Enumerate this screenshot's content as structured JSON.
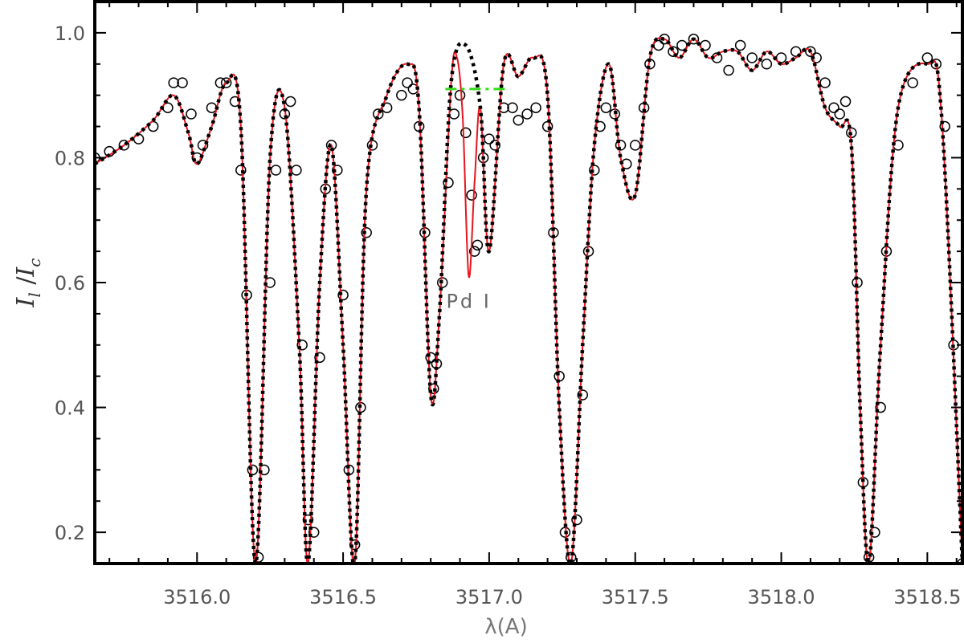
{
  "chart_data": {
    "type": "line",
    "title": "",
    "xlabel": "λ(A)",
    "ylabel": {
      "main": "I",
      "sub_l": "l",
      "sep": " /",
      "main2": "I",
      "sub_c": "c"
    },
    "xlim": [
      3515.65,
      3518.62
    ],
    "ylim": [
      0.15,
      1.05
    ],
    "xticks": [
      3516.0,
      3516.5,
      3517.0,
      3517.5,
      3518.0,
      3518.5
    ],
    "xtick_labels": [
      "3516.0",
      "3516.5",
      "3517.0",
      "3517.5",
      "3518.0",
      "3518.5"
    ],
    "yticks": [
      0.2,
      0.4,
      0.6,
      0.8,
      1.0
    ],
    "ytick_labels": [
      "0.2",
      "0.4",
      "0.6",
      "0.8",
      "1.0"
    ],
    "grid": false,
    "annotations": [
      {
        "text": "Pd I",
        "x": 3516.93,
        "y": 0.57
      }
    ],
    "colors": {
      "model": "#e8141c",
      "model_no_pd": "#000000",
      "continuum": "#33dd1a",
      "observed": "#000000"
    },
    "series": [
      {
        "style": "open-circles",
        "points": [
          [
            3515.65,
            0.8
          ],
          [
            3515.7,
            0.81
          ],
          [
            3515.75,
            0.82
          ],
          [
            3515.8,
            0.83
          ],
          [
            3515.85,
            0.85
          ],
          [
            3515.9,
            0.88
          ],
          [
            3515.92,
            0.92
          ],
          [
            3515.95,
            0.92
          ],
          [
            3515.98,
            0.87
          ],
          [
            3516.0,
            0.8
          ],
          [
            3516.02,
            0.82
          ],
          [
            3516.05,
            0.88
          ],
          [
            3516.08,
            0.92
          ],
          [
            3516.1,
            0.92
          ],
          [
            3516.13,
            0.89
          ],
          [
            3516.15,
            0.78
          ],
          [
            3516.17,
            0.58
          ],
          [
            3516.19,
            0.3
          ],
          [
            3516.21,
            0.16
          ],
          [
            3516.23,
            0.3
          ],
          [
            3516.25,
            0.6
          ],
          [
            3516.27,
            0.78
          ],
          [
            3516.3,
            0.87
          ],
          [
            3516.32,
            0.89
          ],
          [
            3516.34,
            0.78
          ],
          [
            3516.36,
            0.5
          ],
          [
            3516.38,
            0.22
          ],
          [
            3516.4,
            0.2
          ],
          [
            3516.42,
            0.48
          ],
          [
            3516.44,
            0.75
          ],
          [
            3516.46,
            0.82
          ],
          [
            3516.48,
            0.78
          ],
          [
            3516.5,
            0.58
          ],
          [
            3516.52,
            0.3
          ],
          [
            3516.54,
            0.18
          ],
          [
            3516.56,
            0.4
          ],
          [
            3516.58,
            0.68
          ],
          [
            3516.6,
            0.82
          ],
          [
            3516.62,
            0.87
          ],
          [
            3516.65,
            0.88
          ],
          [
            3516.7,
            0.9
          ],
          [
            3516.72,
            0.92
          ],
          [
            3516.74,
            0.91
          ],
          [
            3516.76,
            0.85
          ],
          [
            3516.78,
            0.68
          ],
          [
            3516.8,
            0.48
          ],
          [
            3516.81,
            0.43
          ],
          [
            3516.82,
            0.47
          ],
          [
            3516.84,
            0.6
          ],
          [
            3516.86,
            0.76
          ],
          [
            3516.88,
            0.87
          ],
          [
            3516.9,
            0.9
          ],
          [
            3516.92,
            0.84
          ],
          [
            3516.94,
            0.74
          ],
          [
            3516.95,
            0.65
          ],
          [
            3516.96,
            0.66
          ],
          [
            3516.98,
            0.8
          ],
          [
            3517.0,
            0.83
          ],
          [
            3517.02,
            0.82
          ],
          [
            3517.05,
            0.88
          ],
          [
            3517.08,
            0.88
          ],
          [
            3517.1,
            0.86
          ],
          [
            3517.13,
            0.87
          ],
          [
            3517.16,
            0.88
          ],
          [
            3517.2,
            0.85
          ],
          [
            3517.22,
            0.68
          ],
          [
            3517.24,
            0.45
          ],
          [
            3517.26,
            0.2
          ],
          [
            3517.28,
            0.16
          ],
          [
            3517.3,
            0.22
          ],
          [
            3517.32,
            0.42
          ],
          [
            3517.34,
            0.65
          ],
          [
            3517.36,
            0.78
          ],
          [
            3517.38,
            0.85
          ],
          [
            3517.4,
            0.88
          ],
          [
            3517.43,
            0.87
          ],
          [
            3517.45,
            0.82
          ],
          [
            3517.47,
            0.79
          ],
          [
            3517.5,
            0.82
          ],
          [
            3517.53,
            0.88
          ],
          [
            3517.55,
            0.95
          ],
          [
            3517.58,
            0.98
          ],
          [
            3517.6,
            0.99
          ],
          [
            3517.63,
            0.97
          ],
          [
            3517.66,
            0.98
          ],
          [
            3517.7,
            0.99
          ],
          [
            3517.74,
            0.98
          ],
          [
            3517.78,
            0.96
          ],
          [
            3517.82,
            0.94
          ],
          [
            3517.86,
            0.98
          ],
          [
            3517.9,
            0.96
          ],
          [
            3517.95,
            0.95
          ],
          [
            3518.0,
            0.96
          ],
          [
            3518.05,
            0.97
          ],
          [
            3518.1,
            0.97
          ],
          [
            3518.12,
            0.96
          ],
          [
            3518.15,
            0.92
          ],
          [
            3518.18,
            0.88
          ],
          [
            3518.2,
            0.87
          ],
          [
            3518.22,
            0.89
          ],
          [
            3518.24,
            0.84
          ],
          [
            3518.26,
            0.6
          ],
          [
            3518.28,
            0.28
          ],
          [
            3518.3,
            0.16
          ],
          [
            3518.32,
            0.2
          ],
          [
            3518.34,
            0.4
          ],
          [
            3518.36,
            0.65
          ],
          [
            3518.4,
            0.82
          ],
          [
            3518.45,
            0.92
          ],
          [
            3518.5,
            0.96
          ],
          [
            3518.53,
            0.95
          ],
          [
            3518.56,
            0.85
          ],
          [
            3518.59,
            0.5
          ],
          [
            3518.62,
            0.15
          ]
        ]
      },
      {
        "style": "dotted",
        "points": [
          [
            3515.65,
            0.79
          ],
          [
            3515.75,
            0.82
          ],
          [
            3515.85,
            0.86
          ],
          [
            3515.92,
            0.9
          ],
          [
            3515.97,
            0.84
          ],
          [
            3516.0,
            0.79
          ],
          [
            3516.05,
            0.85
          ],
          [
            3516.1,
            0.92
          ],
          [
            3516.15,
            0.85
          ],
          [
            3516.2,
            0.15
          ],
          [
            3516.25,
            0.8
          ],
          [
            3516.3,
            0.88
          ],
          [
            3516.35,
            0.5
          ],
          [
            3516.38,
            0.15
          ],
          [
            3516.42,
            0.6
          ],
          [
            3516.46,
            0.82
          ],
          [
            3516.5,
            0.5
          ],
          [
            3516.54,
            0.15
          ],
          [
            3516.58,
            0.75
          ],
          [
            3516.65,
            0.9
          ],
          [
            3516.72,
            0.95
          ],
          [
            3516.76,
            0.88
          ],
          [
            3516.8,
            0.42
          ],
          [
            3516.83,
            0.55
          ],
          [
            3516.87,
            0.92
          ],
          [
            3516.92,
            0.98
          ],
          [
            3516.97,
            0.88
          ],
          [
            3517.0,
            0.65
          ],
          [
            3517.05,
            0.95
          ],
          [
            3517.1,
            0.93
          ],
          [
            3517.15,
            0.96
          ],
          [
            3517.2,
            0.9
          ],
          [
            3517.24,
            0.4
          ],
          [
            3517.28,
            0.15
          ],
          [
            3517.32,
            0.5
          ],
          [
            3517.36,
            0.82
          ],
          [
            3517.41,
            0.95
          ],
          [
            3517.45,
            0.8
          ],
          [
            3517.5,
            0.74
          ],
          [
            3517.55,
            0.96
          ],
          [
            3517.6,
            0.99
          ],
          [
            3517.65,
            0.96
          ],
          [
            3517.7,
            0.99
          ],
          [
            3517.75,
            0.96
          ],
          [
            3517.8,
            0.97
          ],
          [
            3517.85,
            0.97
          ],
          [
            3517.9,
            0.94
          ],
          [
            3517.95,
            0.97
          ],
          [
            3518.0,
            0.95
          ],
          [
            3518.05,
            0.96
          ],
          [
            3518.1,
            0.97
          ],
          [
            3518.15,
            0.88
          ],
          [
            3518.2,
            0.85
          ],
          [
            3518.24,
            0.82
          ],
          [
            3518.27,
            0.4
          ],
          [
            3518.3,
            0.15
          ],
          [
            3518.34,
            0.5
          ],
          [
            3518.4,
            0.88
          ],
          [
            3518.5,
            0.95
          ],
          [
            3518.55,
            0.86
          ],
          [
            3518.62,
            0.15
          ]
        ]
      },
      {
        "style": "solid",
        "points": [
          [
            3515.65,
            0.79
          ],
          [
            3515.75,
            0.82
          ],
          [
            3515.85,
            0.86
          ],
          [
            3515.92,
            0.9
          ],
          [
            3515.97,
            0.84
          ],
          [
            3516.0,
            0.79
          ],
          [
            3516.05,
            0.85
          ],
          [
            3516.1,
            0.92
          ],
          [
            3516.15,
            0.85
          ],
          [
            3516.2,
            0.15
          ],
          [
            3516.25,
            0.8
          ],
          [
            3516.3,
            0.88
          ],
          [
            3516.35,
            0.5
          ],
          [
            3516.38,
            0.15
          ],
          [
            3516.42,
            0.6
          ],
          [
            3516.46,
            0.82
          ],
          [
            3516.5,
            0.5
          ],
          [
            3516.54,
            0.15
          ],
          [
            3516.58,
            0.75
          ],
          [
            3516.65,
            0.9
          ],
          [
            3516.72,
            0.95
          ],
          [
            3516.76,
            0.88
          ],
          [
            3516.8,
            0.42
          ],
          [
            3516.83,
            0.55
          ],
          [
            3516.87,
            0.92
          ],
          [
            3516.89,
            0.96
          ],
          [
            3516.91,
            0.86
          ],
          [
            3516.93,
            0.61
          ],
          [
            3516.95,
            0.76
          ],
          [
            3516.97,
            0.88
          ],
          [
            3517.0,
            0.65
          ],
          [
            3517.05,
            0.95
          ],
          [
            3517.1,
            0.93
          ],
          [
            3517.15,
            0.96
          ],
          [
            3517.2,
            0.9
          ],
          [
            3517.24,
            0.4
          ],
          [
            3517.28,
            0.15
          ],
          [
            3517.32,
            0.5
          ],
          [
            3517.36,
            0.82
          ],
          [
            3517.41,
            0.95
          ],
          [
            3517.45,
            0.8
          ],
          [
            3517.5,
            0.74
          ],
          [
            3517.55,
            0.96
          ],
          [
            3517.6,
            0.99
          ],
          [
            3517.65,
            0.96
          ],
          [
            3517.7,
            0.99
          ],
          [
            3517.75,
            0.96
          ],
          [
            3517.8,
            0.97
          ],
          [
            3517.85,
            0.97
          ],
          [
            3517.9,
            0.94
          ],
          [
            3517.95,
            0.97
          ],
          [
            3518.0,
            0.95
          ],
          [
            3518.05,
            0.96
          ],
          [
            3518.1,
            0.97
          ],
          [
            3518.15,
            0.88
          ],
          [
            3518.2,
            0.85
          ],
          [
            3518.24,
            0.82
          ],
          [
            3518.27,
            0.4
          ],
          [
            3518.3,
            0.15
          ],
          [
            3518.34,
            0.5
          ],
          [
            3518.4,
            0.88
          ],
          [
            3518.5,
            0.95
          ],
          [
            3518.55,
            0.86
          ],
          [
            3518.62,
            0.15
          ]
        ]
      },
      {
        "style": "dash-dot",
        "points": [
          [
            3516.85,
            0.91
          ],
          [
            3517.06,
            0.91
          ]
        ]
      }
    ]
  }
}
